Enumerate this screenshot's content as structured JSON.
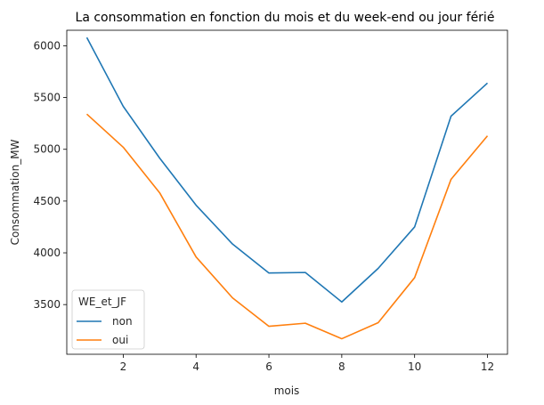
{
  "chart_data": {
    "type": "line",
    "title": "La consommation en fonction du mois et du week-end ou jour férié",
    "xlabel": "mois",
    "ylabel": "Consommation_MW",
    "x": [
      1,
      2,
      3,
      4,
      5,
      6,
      7,
      8,
      9,
      10,
      11,
      12
    ],
    "xlim": [
      0.45,
      12.55
    ],
    "ylim": [
      3020,
      6150
    ],
    "xticks": [
      2,
      4,
      6,
      8,
      10,
      12
    ],
    "yticks": [
      3500,
      4000,
      4500,
      5000,
      5500,
      6000
    ],
    "grid": false,
    "legend": {
      "title": "WE_et_JF",
      "position": "bottom-left"
    },
    "series": [
      {
        "name": "non",
        "color": "#1f77b4",
        "values": [
          6080,
          5415,
          4915,
          4460,
          4085,
          3805,
          3810,
          3525,
          3850,
          4250,
          5320,
          5640
        ]
      },
      {
        "name": "oui",
        "color": "#ff7f0e",
        "values": [
          5340,
          5020,
          4580,
          3960,
          3565,
          3290,
          3320,
          3170,
          3325,
          3760,
          4710,
          5130
        ]
      }
    ]
  }
}
